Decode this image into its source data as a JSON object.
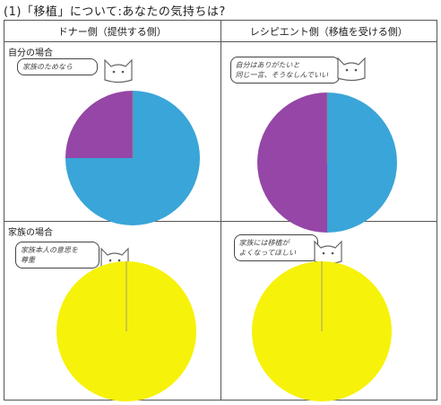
{
  "title": "(1)「移植」について:あなたの気持ちは?",
  "columns": [
    "ドナー側（提供する側）",
    "レシピエント側（移植を受ける側）"
  ],
  "rows": [
    "自分の場合",
    "家族の場合"
  ],
  "bubbles": {
    "donor_self": "家族のためなら",
    "recipient_self": "自分はありがたいと\n同じ一言、そうなしんでいい",
    "donor_family": "家族本人の意思を\n尊重",
    "recipient_family": "家族には移植が\nよくなってほしい"
  },
  "chart_data": [
    {
      "type": "pie",
      "panel": "donor_self",
      "slices": [
        {
          "color": "#3aa5d8",
          "value": 75
        },
        {
          "color": "#9546a6",
          "value": 25
        }
      ]
    },
    {
      "type": "pie",
      "panel": "recipient_self",
      "slices": [
        {
          "color": "#3aa5d8",
          "value": 50
        },
        {
          "color": "#9546a6",
          "value": 50
        }
      ]
    },
    {
      "type": "pie",
      "panel": "donor_family",
      "slices": [
        {
          "color": "#f7f20a",
          "value": 100
        }
      ]
    },
    {
      "type": "pie",
      "panel": "recipient_family",
      "slices": [
        {
          "color": "#f7f20a",
          "value": 100
        }
      ]
    }
  ],
  "colors": {
    "blue": "#3aa5d8",
    "purple": "#9546a6",
    "yellow": "#f7f20a"
  },
  "icon": "cat-face-icon"
}
